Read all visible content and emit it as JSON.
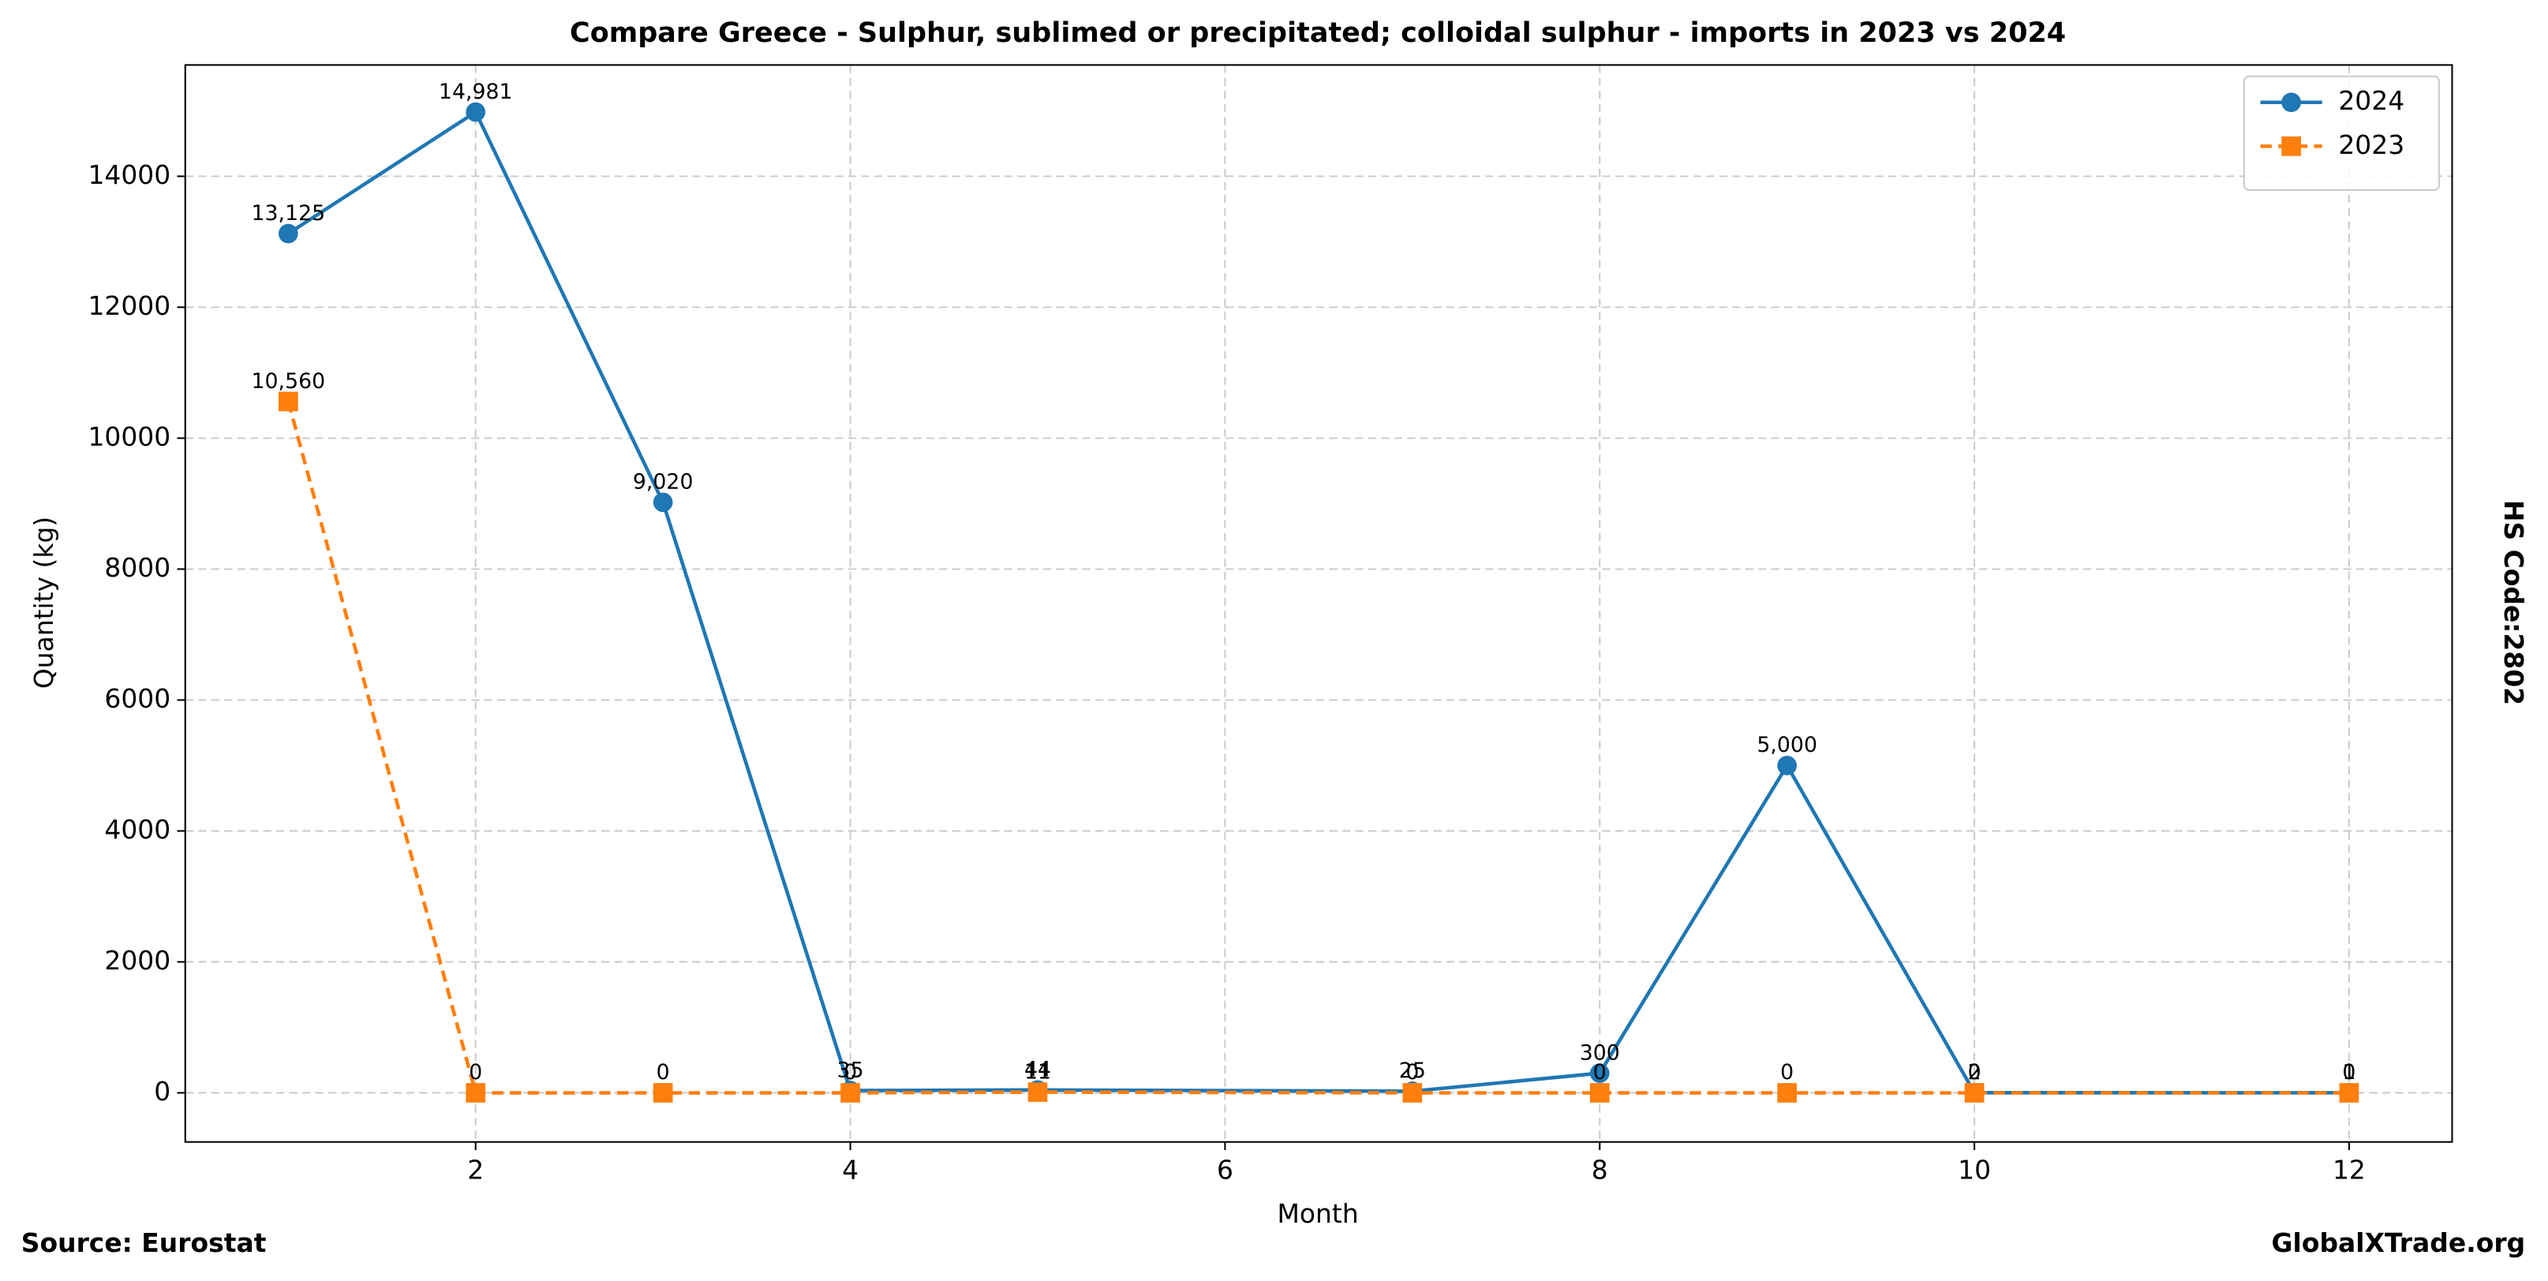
{
  "chart_data": {
    "type": "line",
    "title": "Compare Greece - Sulphur, sublimed or precipitated; colloidal sulphur - imports in 2023 vs 2024",
    "xlabel": "Month",
    "ylabel": "Quantity (kg)",
    "side_label": "HS Code:2802",
    "source": "Source: Eurostat",
    "brand": "GlobalXTrade.org",
    "x": [
      1,
      2,
      3,
      4,
      5,
      7,
      8,
      9,
      10,
      12
    ],
    "series": [
      {
        "name": "2024",
        "color": "#1f77b4",
        "marker": "circle",
        "dashed": false,
        "values": [
          13125,
          14981,
          9020,
          35,
          44,
          25,
          300,
          5000,
          2,
          1
        ],
        "value_labels": [
          "13,125",
          "14,981",
          "9,020",
          "35",
          "44",
          "25",
          "300",
          "5,000",
          "2",
          "1"
        ]
      },
      {
        "name": "2023",
        "color": "#ff7f0e",
        "marker": "square",
        "dashed": true,
        "values": [
          10560,
          0,
          0,
          0,
          11,
          0,
          0,
          0,
          0,
          0
        ],
        "value_labels": [
          "10,560",
          "0",
          "0",
          "0",
          "11",
          "0",
          "0",
          "0",
          "0",
          "0"
        ]
      }
    ],
    "xlim": [
      0.45,
      12.55
    ],
    "ylim": [
      -750,
      15700
    ],
    "xticks": [
      2,
      4,
      6,
      8,
      10,
      12
    ],
    "yticks": [
      0,
      2000,
      4000,
      6000,
      8000,
      10000,
      12000,
      14000
    ],
    "grid": true,
    "legend": "upper right"
  }
}
